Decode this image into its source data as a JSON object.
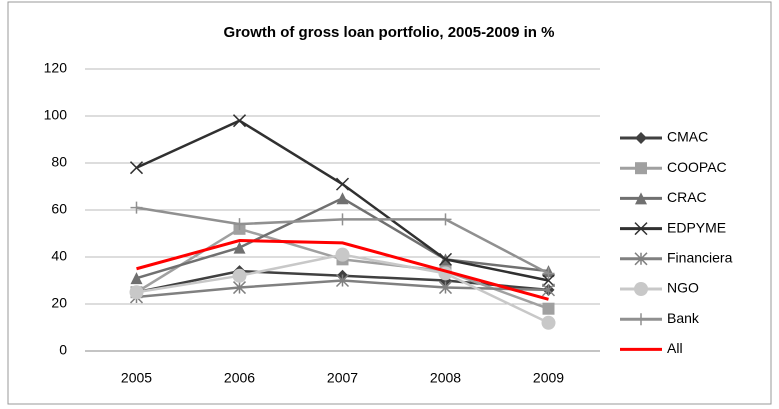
{
  "chart_data": {
    "type": "line",
    "title": "Growth of gross loan portfolio, 2005-2009 in %",
    "categories": [
      "2005",
      "2006",
      "2007",
      "2008",
      "2009"
    ],
    "series": [
      {
        "name": "CMAC",
        "color": "#404040",
        "marker": "diamond",
        "values": [
          25,
          34,
          32,
          30,
          26
        ]
      },
      {
        "name": "COOPAC",
        "color": "#a0a0a0",
        "marker": "square",
        "values": [
          25,
          52,
          39,
          34,
          18
        ]
      },
      {
        "name": "CRAC",
        "color": "#707070",
        "marker": "triangle",
        "values": [
          31,
          44,
          65,
          39,
          34
        ]
      },
      {
        "name": "EDPYME",
        "color": "#303030",
        "marker": "x",
        "values": [
          78,
          98,
          71,
          39,
          30
        ]
      },
      {
        "name": "Financiera",
        "color": "#808080",
        "marker": "star",
        "values": [
          23,
          27,
          30,
          27,
          26
        ]
      },
      {
        "name": "NGO",
        "color": "#c8c8c8",
        "marker": "circle",
        "values": [
          25,
          32,
          41,
          33,
          12
        ]
      },
      {
        "name": "Bank",
        "color": "#909090",
        "marker": "plus",
        "values": [
          61,
          54,
          56,
          56,
          33
        ]
      },
      {
        "name": "All",
        "color": "#ff0000",
        "marker": "dash",
        "values": [
          35,
          47,
          46,
          34,
          22
        ]
      }
    ],
    "ylim": [
      0,
      120
    ],
    "yticks": [
      0,
      20,
      40,
      60,
      80,
      100,
      120
    ],
    "grid": true,
    "legend": "right"
  }
}
